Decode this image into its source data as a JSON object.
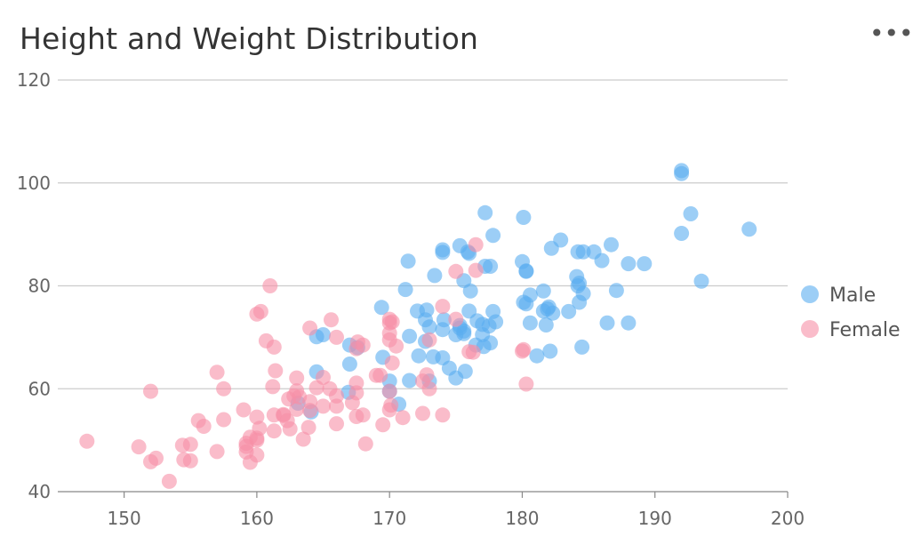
{
  "title": "Height and Weight Distribution",
  "more_icon": "•••",
  "chart_data": {
    "type": "scatter",
    "title": "Height and Weight Distribution",
    "xlabel": "",
    "ylabel": "",
    "xlim": [
      145,
      200
    ],
    "ylim": [
      40,
      120
    ],
    "xticks": [
      "150",
      "160",
      "170",
      "180",
      "190",
      "200"
    ],
    "yticks": [
      "40",
      "60",
      "80",
      "100",
      "120"
    ],
    "grid": "horizontal",
    "legend": "right",
    "series": [
      {
        "name": "Male",
        "color": "#5aaef0",
        "points": [
          [
            192.0,
            102.4
          ],
          [
            192.0,
            101.8
          ],
          [
            192.7,
            94.0
          ],
          [
            197.1,
            91.0
          ],
          [
            192.0,
            90.2
          ],
          [
            193.5,
            80.9
          ],
          [
            177.2,
            94.2
          ],
          [
            180.1,
            93.3
          ],
          [
            177.8,
            89.8
          ],
          [
            182.9,
            88.9
          ],
          [
            186.7,
            88.0
          ],
          [
            175.3,
            87.8
          ],
          [
            174.0,
            87.0
          ],
          [
            175.9,
            86.6
          ],
          [
            174.0,
            86.5
          ],
          [
            176.0,
            86.3
          ],
          [
            171.4,
            84.8
          ],
          [
            180.0,
            84.7
          ],
          [
            184.6,
            86.6
          ],
          [
            185.4,
            86.6
          ],
          [
            184.2,
            86.6
          ],
          [
            182.2,
            87.3
          ],
          [
            186.0,
            84.9
          ],
          [
            188.0,
            84.3
          ],
          [
            189.2,
            84.3
          ],
          [
            177.2,
            83.8
          ],
          [
            177.6,
            83.8
          ],
          [
            180.3,
            82.9
          ],
          [
            180.3,
            82.8
          ],
          [
            173.4,
            82.0
          ],
          [
            175.6,
            81.0
          ],
          [
            184.1,
            81.8
          ],
          [
            184.2,
            80.0
          ],
          [
            184.3,
            80.5
          ],
          [
            184.6,
            78.5
          ],
          [
            187.1,
            79.1
          ],
          [
            181.6,
            79.0
          ],
          [
            176.1,
            79.0
          ],
          [
            171.2,
            79.3
          ],
          [
            180.6,
            78.2
          ],
          [
            180.1,
            76.8
          ],
          [
            180.3,
            76.5
          ],
          [
            184.3,
            76.8
          ],
          [
            182.0,
            75.9
          ],
          [
            181.9,
            75.5
          ],
          [
            181.6,
            75.1
          ],
          [
            183.5,
            75.0
          ],
          [
            182.3,
            74.7
          ],
          [
            169.4,
            75.8
          ],
          [
            172.1,
            75.1
          ],
          [
            172.8,
            75.3
          ],
          [
            176.0,
            75.1
          ],
          [
            177.8,
            75.0
          ],
          [
            174.1,
            73.4
          ],
          [
            172.7,
            73.4
          ],
          [
            176.6,
            73.2
          ],
          [
            178.0,
            73.0
          ],
          [
            175.3,
            72.3
          ],
          [
            175.3,
            71.8
          ],
          [
            174.0,
            71.5
          ],
          [
            177.0,
            72.5
          ],
          [
            177.5,
            72.2
          ],
          [
            180.6,
            72.8
          ],
          [
            181.8,
            72.4
          ],
          [
            186.4,
            72.8
          ],
          [
            188.0,
            72.8
          ],
          [
            173.0,
            72.0
          ],
          [
            175.6,
            71.2
          ],
          [
            175.0,
            70.5
          ],
          [
            175.6,
            70.7
          ],
          [
            171.5,
            70.2
          ],
          [
            164.5,
            70.1
          ],
          [
            165.0,
            70.5
          ],
          [
            177.0,
            70.5
          ],
          [
            177.6,
            68.9
          ],
          [
            177.1,
            68.2
          ],
          [
            176.5,
            68.5
          ],
          [
            167.0,
            68.5
          ],
          [
            167.6,
            68.0
          ],
          [
            172.7,
            69.2
          ],
          [
            172.2,
            66.4
          ],
          [
            173.3,
            66.2
          ],
          [
            174.0,
            66.0
          ],
          [
            181.1,
            66.4
          ],
          [
            182.1,
            67.3
          ],
          [
            184.5,
            68.1
          ],
          [
            169.5,
            66.1
          ],
          [
            167.0,
            64.8
          ],
          [
            164.5,
            63.3
          ],
          [
            174.5,
            64.0
          ],
          [
            175.7,
            63.4
          ],
          [
            175.0,
            62.1
          ],
          [
            171.5,
            61.6
          ],
          [
            170.0,
            61.5
          ],
          [
            173.0,
            61.5
          ],
          [
            166.9,
            59.3
          ],
          [
            170.0,
            59.5
          ],
          [
            170.7,
            57.0
          ],
          [
            163.1,
            57.2
          ],
          [
            164.1,
            55.5
          ]
        ]
      },
      {
        "name": "Female",
        "color": "#f78fa7",
        "points": [
          [
            161.0,
            80.0
          ],
          [
            176.5,
            88.0
          ],
          [
            176.5,
            83.0
          ],
          [
            175.0,
            82.8
          ],
          [
            160.3,
            75.0
          ],
          [
            160.0,
            74.5
          ],
          [
            174.0,
            76.0
          ],
          [
            170.0,
            73.5
          ],
          [
            170.2,
            73.0
          ],
          [
            170.0,
            72.8
          ],
          [
            175.0,
            73.5
          ],
          [
            164.0,
            71.8
          ],
          [
            165.6,
            73.4
          ],
          [
            170.0,
            70.8
          ],
          [
            170.0,
            69.5
          ],
          [
            166.0,
            70.0
          ],
          [
            160.7,
            69.3
          ],
          [
            167.6,
            69.1
          ],
          [
            173.0,
            69.5
          ],
          [
            161.3,
            68.1
          ],
          [
            168.0,
            68.5
          ],
          [
            170.5,
            68.3
          ],
          [
            167.5,
            67.8
          ],
          [
            176.3,
            67.1
          ],
          [
            176.0,
            67.2
          ],
          [
            180.0,
            67.3
          ],
          [
            180.1,
            67.6
          ],
          [
            170.2,
            65.0
          ],
          [
            161.4,
            63.5
          ],
          [
            157.0,
            63.2
          ],
          [
            169.0,
            62.6
          ],
          [
            169.3,
            62.6
          ],
          [
            165.0,
            62.2
          ],
          [
            163.0,
            62.1
          ],
          [
            172.8,
            62.7
          ],
          [
            172.5,
            61.5
          ],
          [
            180.3,
            60.9
          ],
          [
            167.5,
            61.1
          ],
          [
            161.2,
            60.4
          ],
          [
            157.5,
            60.0
          ],
          [
            152.0,
            59.5
          ],
          [
            163.0,
            59.6
          ],
          [
            164.5,
            60.2
          ],
          [
            165.5,
            60.0
          ],
          [
            170.0,
            59.5
          ],
          [
            173.0,
            60.0
          ],
          [
            162.8,
            58.6
          ],
          [
            166.0,
            58.6
          ],
          [
            167.5,
            59.2
          ],
          [
            163.2,
            58.4
          ],
          [
            162.4,
            58.0
          ],
          [
            164.0,
            57.5
          ],
          [
            167.2,
            57.3
          ],
          [
            166.0,
            56.6
          ],
          [
            165.0,
            56.6
          ],
          [
            170.0,
            55.9
          ],
          [
            170.1,
            56.8
          ],
          [
            159.0,
            55.9
          ],
          [
            163.0,
            56.0
          ],
          [
            164.0,
            55.8
          ],
          [
            172.5,
            55.2
          ],
          [
            174.0,
            54.9
          ],
          [
            162.0,
            55.0
          ],
          [
            162.0,
            54.8
          ],
          [
            161.3,
            54.9
          ],
          [
            168.0,
            54.9
          ],
          [
            167.5,
            54.6
          ],
          [
            171.0,
            54.4
          ],
          [
            160.0,
            54.5
          ],
          [
            162.3,
            53.8
          ],
          [
            157.5,
            54.0
          ],
          [
            155.6,
            53.8
          ],
          [
            166.0,
            53.2
          ],
          [
            169.5,
            53.0
          ],
          [
            156.0,
            52.7
          ],
          [
            162.5,
            52.2
          ],
          [
            163.9,
            52.5
          ],
          [
            160.2,
            52.3
          ],
          [
            161.3,
            51.8
          ],
          [
            163.5,
            50.2
          ],
          [
            160.0,
            50.4
          ],
          [
            159.5,
            50.6
          ],
          [
            160.0,
            50.0
          ],
          [
            159.2,
            49.4
          ],
          [
            159.2,
            48.8
          ],
          [
            155.0,
            49.2
          ],
          [
            154.4,
            49.0
          ],
          [
            151.1,
            48.7
          ],
          [
            157.0,
            47.8
          ],
          [
            159.2,
            47.7
          ],
          [
            160.0,
            47.1
          ],
          [
            152.4,
            46.5
          ],
          [
            154.5,
            46.2
          ],
          [
            155.0,
            46.0
          ],
          [
            152.0,
            45.8
          ],
          [
            159.5,
            45.7
          ],
          [
            168.2,
            49.3
          ],
          [
            147.2,
            49.8
          ],
          [
            153.4,
            42.0
          ]
        ]
      }
    ]
  }
}
